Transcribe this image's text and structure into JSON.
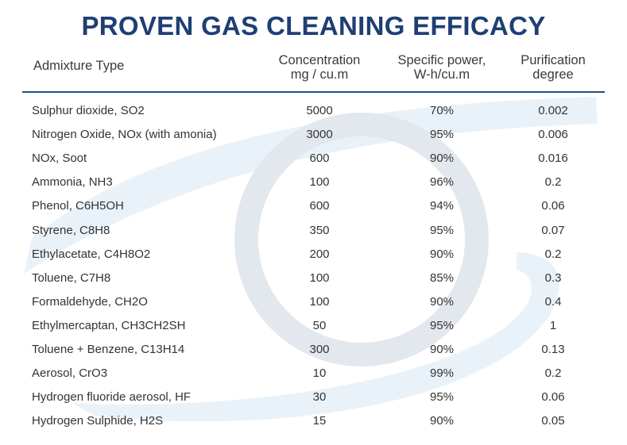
{
  "chart_data": {
    "type": "table",
    "title": "PROVEN GAS CLEANING EFFICACY",
    "columns": [
      {
        "lines": [
          "Admixture Type"
        ]
      },
      {
        "lines": [
          "Concentration",
          "mg / cu.m"
        ]
      },
      {
        "lines": [
          "Specific power,",
          "W-h/cu.m"
        ]
      },
      {
        "lines": [
          "Purification",
          "degree"
        ]
      }
    ],
    "rows": [
      {
        "name": "Sulphur dioxide, SO2",
        "concentration": "5000",
        "power": "70%",
        "purification": "0.002"
      },
      {
        "name": "Nitrogen Oxide, NOx (with amonia)",
        "concentration": "3000",
        "power": "95%",
        "purification": "0.006"
      },
      {
        "name": "NOx, Soot",
        "concentration": "600",
        "power": "90%",
        "purification": "0.016"
      },
      {
        "name": "Ammonia, NH3",
        "concentration": "100",
        "power": "96%",
        "purification": "0.2"
      },
      {
        "name": "Phenol, C6H5OH",
        "concentration": "600",
        "power": "94%",
        "purification": "0.06"
      },
      {
        "name": "Styrene, C8H8",
        "concentration": "350",
        "power": "95%",
        "purification": "0.07"
      },
      {
        "name": "Ethylacetate, C4H8O2",
        "concentration": "200",
        "power": "90%",
        "purification": "0.2"
      },
      {
        "name": "Toluene, C7H8",
        "concentration": "100",
        "power": "85%",
        "purification": "0.3"
      },
      {
        "name": "Formaldehyde, CH2O",
        "concentration": "100",
        "power": "90%",
        "purification": "0.4"
      },
      {
        "name": "Ethylmercaptan, CH3CH2SH",
        "concentration": "50",
        "power": "95%",
        "purification": "1"
      },
      {
        "name": "Toluene + Benzene, C13H14",
        "concentration": "300",
        "power": "90%",
        "purification": "0.13"
      },
      {
        "name": "Aerosol, CrO3",
        "concentration": "10",
        "power": "99%",
        "purification": "0.2"
      },
      {
        "name": "Hydrogen fluoride aerosol, HF",
        "concentration": "30",
        "power": "95%",
        "purification": "0.06"
      },
      {
        "name": "Hydrogen Sulphide, H2S",
        "concentration": "15",
        "power": "90%",
        "purification": "0.05"
      }
    ]
  },
  "colors": {
    "title": "#1e3f74",
    "rule": "#1e4f86",
    "text": "#333333",
    "watermark_ring": "#e3e8ee",
    "watermark_swoosh": "#eaf2f9"
  },
  "decor": {
    "background_icon": "ring-and-swoosh-watermark-icon"
  }
}
